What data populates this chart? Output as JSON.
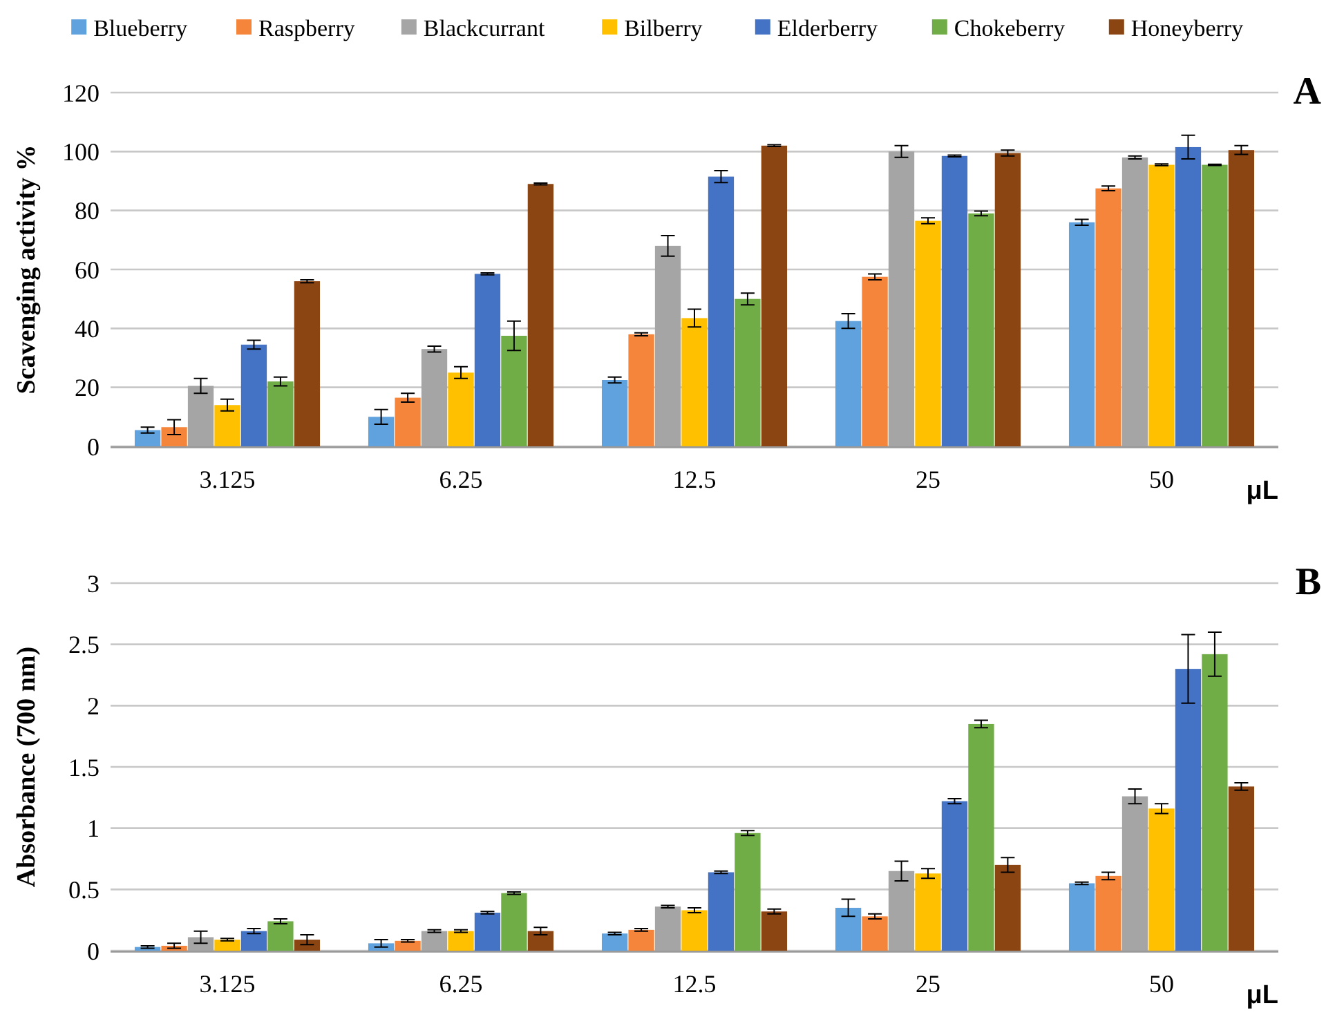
{
  "chart_data": [
    {
      "type": "bar",
      "categories": [
        "3.125",
        "6.25",
        "12.5",
        "25",
        "50"
      ],
      "xlabel": "μL",
      "ylabel": "Scavenging activity %",
      "annotations": [
        "A"
      ],
      "ylim": [
        0,
        120
      ],
      "yticks": [
        0,
        20,
        40,
        60,
        80,
        100,
        120
      ],
      "grid": "y",
      "legend": "top",
      "series": [
        {
          "name": "Blueberry",
          "color": "#5fa2dd",
          "values": [
            5.5,
            10,
            22.5,
            42.5,
            76
          ],
          "errors": [
            1,
            2.5,
            1,
            2.5,
            1
          ]
        },
        {
          "name": "Raspberry",
          "color": "#f5853a",
          "values": [
            6.5,
            16.5,
            38,
            57.5,
            87.5
          ],
          "errors": [
            2.5,
            1.5,
            0.5,
            1,
            0.8
          ]
        },
        {
          "name": "Blackcurrant",
          "color": "#a5a5a5",
          "values": [
            20.5,
            33,
            68,
            100,
            98
          ],
          "errors": [
            2.5,
            1,
            3.5,
            2,
            0.5
          ]
        },
        {
          "name": "Bilberry",
          "color": "#ffc000",
          "values": [
            14,
            25,
            43.5,
            76.5,
            95.5
          ],
          "errors": [
            2,
            2,
            3,
            1,
            0.3
          ]
        },
        {
          "name": "Elderberry",
          "color": "#4472c4",
          "values": [
            34.5,
            58.5,
            91.5,
            98.5,
            101.5
          ],
          "errors": [
            1.5,
            0.3,
            2,
            0.3,
            4
          ]
        },
        {
          "name": "Chokeberry",
          "color": "#70ad47",
          "values": [
            22,
            37.5,
            50,
            79,
            95.5
          ],
          "errors": [
            1.5,
            5,
            2,
            0.8,
            0.2
          ]
        },
        {
          "name": "Honeyberry",
          "color": "#8b4513",
          "values": [
            56,
            89,
            102,
            99.5,
            100.5
          ],
          "errors": [
            0.5,
            0.3,
            0.3,
            1,
            1.5
          ]
        }
      ]
    },
    {
      "type": "bar",
      "categories": [
        "3.125",
        "6.25",
        "12.5",
        "25",
        "50"
      ],
      "xlabel": "μL",
      "ylabel": "Absorbance (700 nm)",
      "annotations": [
        "B"
      ],
      "ylim": [
        0,
        3
      ],
      "yticks": [
        0,
        0.5,
        1,
        1.5,
        2,
        2.5,
        3
      ],
      "grid": "y",
      "series": [
        {
          "color": "#5fa2dd",
          "values": [
            0.03,
            0.06,
            0.14,
            0.35,
            0.55
          ],
          "errors": [
            0.01,
            0.03,
            0.01,
            0.07,
            0.01
          ]
        },
        {
          "color": "#f5853a",
          "values": [
            0.04,
            0.08,
            0.17,
            0.28,
            0.61
          ],
          "errors": [
            0.02,
            0.01,
            0.01,
            0.02,
            0.03
          ]
        },
        {
          "color": "#a5a5a5",
          "values": [
            0.11,
            0.16,
            0.36,
            0.65,
            1.26
          ],
          "errors": [
            0.05,
            0.01,
            0.01,
            0.08,
            0.06
          ]
        },
        {
          "color": "#ffc000",
          "values": [
            0.09,
            0.16,
            0.33,
            0.63,
            1.16
          ],
          "errors": [
            0.01,
            0.01,
            0.02,
            0.04,
            0.04
          ]
        },
        {
          "color": "#4472c4",
          "values": [
            0.16,
            0.31,
            0.64,
            1.22,
            2.3
          ],
          "errors": [
            0.02,
            0.01,
            0.01,
            0.02,
            0.28
          ]
        },
        {
          "color": "#70ad47",
          "values": [
            0.24,
            0.47,
            0.96,
            1.85,
            2.42
          ],
          "errors": [
            0.02,
            0.01,
            0.02,
            0.03,
            0.18
          ]
        },
        {
          "color": "#8b4513",
          "values": [
            0.09,
            0.16,
            0.32,
            0.7,
            1.34
          ],
          "errors": [
            0.04,
            0.03,
            0.02,
            0.06,
            0.03
          ]
        }
      ]
    }
  ]
}
